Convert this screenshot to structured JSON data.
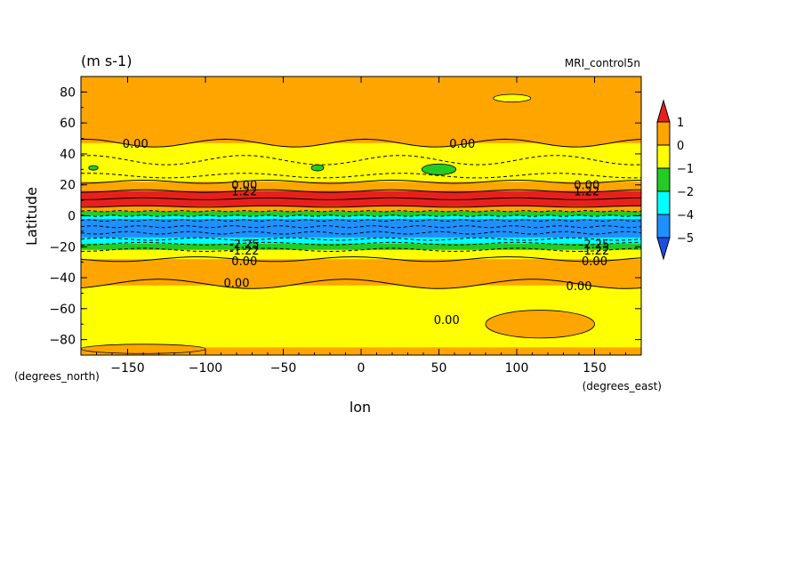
{
  "chart_data": {
    "type": "heatmap",
    "units_label": "(m s-1)",
    "source_label": "MRI_control5n",
    "xlabel": "lon",
    "ylabel": "Latitude",
    "x_units": "(degrees_east)",
    "y_units": "(degrees_north)",
    "xlim": [
      -180,
      180
    ],
    "ylim": [
      -90,
      90
    ],
    "x_ticks": [
      -150,
      -100,
      -50,
      0,
      50,
      100,
      150
    ],
    "y_ticks": [
      80,
      60,
      40,
      20,
      0,
      -20,
      -40,
      -60,
      -80
    ],
    "colorbar": {
      "levels": [
        "1",
        "0",
        "-1",
        "-2",
        "-4",
        "-5"
      ],
      "colors": [
        "#e8201c",
        "#ffa500",
        "#ffff00",
        "#22cc22",
        "#00ffff",
        "#1e90ff",
        "#1a4fe0"
      ]
    },
    "zonal_bands": [
      {
        "lat_top": 90,
        "lat_bottom": 47,
        "color": "#ffa500"
      },
      {
        "lat_top": 47,
        "lat_bottom": 22,
        "color": "#ffff00"
      },
      {
        "lat_top": 22,
        "lat_bottom": 16,
        "color": "#ffa500"
      },
      {
        "lat_top": 16,
        "lat_bottom": 6,
        "color": "#e8201c"
      },
      {
        "lat_top": 6,
        "lat_bottom": 3,
        "color": "#ffa500"
      },
      {
        "lat_top": 3,
        "lat_bottom": 0,
        "color": "#22cc22"
      },
      {
        "lat_top": 0,
        "lat_bottom": -2,
        "color": "#00ffff"
      },
      {
        "lat_top": -2,
        "lat_bottom": -14,
        "color": "#1e90ff"
      },
      {
        "lat_top": -14,
        "lat_bottom": -18,
        "color": "#00ffff"
      },
      {
        "lat_top": -18,
        "lat_bottom": -22,
        "color": "#22cc22"
      },
      {
        "lat_top": -22,
        "lat_bottom": -28,
        "color": "#ffff00"
      },
      {
        "lat_top": -28,
        "lat_bottom": -45,
        "color": "#ffa500"
      },
      {
        "lat_top": -45,
        "lat_bottom": -85,
        "color": "#ffff00"
      },
      {
        "lat_top": -85,
        "lat_bottom": -90,
        "color": "#ffa500"
      }
    ],
    "contour_labels": [
      {
        "text": "0.00",
        "lon": -145,
        "lat": 47
      },
      {
        "text": "0.00",
        "lon": 65,
        "lat": 47
      },
      {
        "text": "0.00",
        "lon": -75,
        "lat": 20
      },
      {
        "text": "1.22",
        "lon": -75,
        "lat": 16
      },
      {
        "text": "0.00",
        "lon": 145,
        "lat": 20
      },
      {
        "text": "1.22",
        "lon": 145,
        "lat": 16
      },
      {
        "text": "-1.22",
        "lon": -75,
        "lat": -22
      },
      {
        "text": "-2.25",
        "lon": -75,
        "lat": -18
      },
      {
        "text": "-1.22",
        "lon": 150,
        "lat": -22
      },
      {
        "text": "-2.25",
        "lon": 150,
        "lat": -18
      },
      {
        "text": "0.00",
        "lon": -75,
        "lat": -29
      },
      {
        "text": "0.00",
        "lon": 150,
        "lat": -29
      },
      {
        "text": "0.00",
        "lon": -80,
        "lat": -43
      },
      {
        "text": "0.00",
        "lon": 140,
        "lat": -45
      },
      {
        "text": "0.00",
        "lon": 55,
        "lat": -67
      }
    ]
  }
}
